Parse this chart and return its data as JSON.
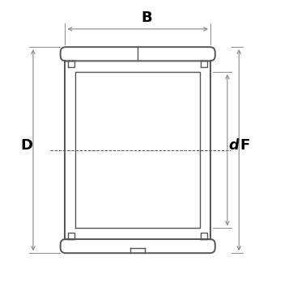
{
  "bg_color": "#ffffff",
  "line_color": "#555555",
  "dim_color": "#888888",
  "label_color": "#000000",
  "figsize": [
    3.62,
    3.75
  ],
  "dpi": 100,
  "dims": {
    "B_label": "B",
    "D_label": "D",
    "d_label": "d",
    "F_label": "F",
    "fontsize": 13
  }
}
